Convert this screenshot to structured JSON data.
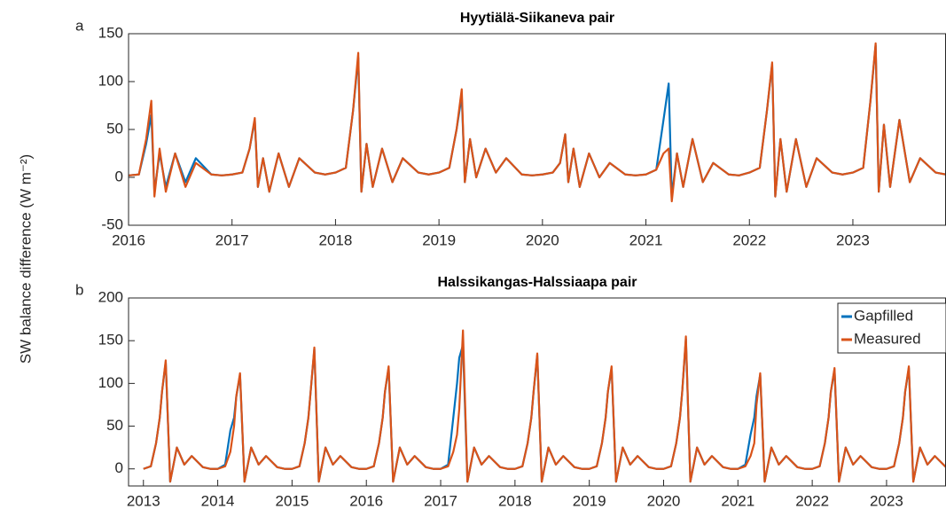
{
  "chart_data": [
    {
      "type": "line",
      "title": "Hyytiälä-Siikaneva pair",
      "panel_label": "a",
      "ylabel": "SW balance difference (W m⁻²)",
      "xlim": [
        2016,
        2023.9
      ],
      "xticks": [
        2016,
        2017,
        2018,
        2019,
        2020,
        2021,
        2022,
        2023
      ],
      "ylim": [
        -50,
        150
      ],
      "yticks": [
        -50,
        0,
        50,
        100,
        150
      ],
      "x": [
        2016.0,
        2016.1,
        2016.17,
        2016.22,
        2016.25,
        2016.3,
        2016.36,
        2016.45,
        2016.55,
        2016.65,
        2016.8,
        2016.9,
        2017.0,
        2017.1,
        2017.17,
        2017.22,
        2017.25,
        2017.3,
        2017.36,
        2017.45,
        2017.55,
        2017.65,
        2017.8,
        2017.9,
        2018.0,
        2018.1,
        2018.17,
        2018.22,
        2018.25,
        2018.3,
        2018.36,
        2018.45,
        2018.55,
        2018.65,
        2018.8,
        2018.9,
        2019.0,
        2019.1,
        2019.17,
        2019.22,
        2019.25,
        2019.3,
        2019.36,
        2019.45,
        2019.55,
        2019.65,
        2019.8,
        2019.9,
        2020.0,
        2020.1,
        2020.17,
        2020.22,
        2020.25,
        2020.3,
        2020.36,
        2020.45,
        2020.55,
        2020.65,
        2020.8,
        2020.9,
        2021.0,
        2021.1,
        2021.17,
        2021.22,
        2021.25,
        2021.3,
        2021.36,
        2021.45,
        2021.55,
        2021.65,
        2021.8,
        2021.9,
        2022.0,
        2022.1,
        2022.17,
        2022.22,
        2022.25,
        2022.3,
        2022.36,
        2022.45,
        2022.55,
        2022.65,
        2022.8,
        2022.9,
        2023.0,
        2023.1,
        2023.17,
        2023.22,
        2023.25,
        2023.3,
        2023.36,
        2023.45,
        2023.55,
        2023.65,
        2023.8,
        2023.9
      ],
      "series": [
        {
          "color": "#0072bd",
          "values": [
            2,
            3,
            35,
            65,
            -15,
            25,
            -10,
            25,
            -5,
            20,
            3,
            2,
            3,
            5,
            30,
            60,
            -10,
            20,
            -15,
            25,
            -10,
            20,
            5,
            3,
            5,
            10,
            70,
            125,
            -15,
            35,
            -10,
            30,
            -5,
            20,
            5,
            3,
            5,
            10,
            50,
            85,
            -5,
            40,
            0,
            30,
            5,
            20,
            3,
            2,
            3,
            5,
            15,
            45,
            -5,
            30,
            -10,
            25,
            0,
            15,
            3,
            2,
            3,
            8,
            60,
            98,
            -20,
            25,
            -10,
            40,
            -5,
            15,
            3,
            2,
            5,
            10,
            70,
            118,
            -20,
            40,
            -15,
            40,
            -10,
            20,
            5,
            3,
            5,
            10,
            80,
            138,
            -15,
            55,
            -10,
            60,
            -5,
            20,
            5,
            3
          ]
        },
        {
          "color": "#d95319",
          "values": [
            2,
            3,
            40,
            80,
            -20,
            30,
            -15,
            25,
            -10,
            15,
            3,
            2,
            3,
            5,
            30,
            62,
            -10,
            20,
            -15,
            25,
            -10,
            20,
            5,
            3,
            5,
            10,
            70,
            130,
            -15,
            35,
            -10,
            30,
            -5,
            20,
            5,
            3,
            5,
            10,
            50,
            92,
            -5,
            40,
            0,
            30,
            5,
            20,
            3,
            2,
            3,
            5,
            15,
            45,
            -5,
            30,
            -10,
            25,
            0,
            15,
            3,
            2,
            3,
            8,
            25,
            30,
            -25,
            25,
            -10,
            40,
            -5,
            15,
            3,
            2,
            5,
            10,
            70,
            120,
            -20,
            40,
            -15,
            40,
            -10,
            20,
            5,
            3,
            5,
            10,
            80,
            140,
            -15,
            55,
            -10,
            60,
            -5,
            20,
            5,
            3
          ]
        }
      ]
    },
    {
      "type": "line",
      "title": "Halssikangas-Halssiaapa pair",
      "panel_label": "b",
      "xlim": [
        2012.8,
        2023.8
      ],
      "xticks": [
        2013,
        2014,
        2015,
        2016,
        2017,
        2018,
        2019,
        2020,
        2021,
        2022,
        2023
      ],
      "ylim": [
        -20,
        200
      ],
      "yticks": [
        0,
        50,
        100,
        150,
        200
      ],
      "legend": "northeast",
      "x": [
        2013.0,
        2013.1,
        2013.17,
        2013.22,
        2013.25,
        2013.3,
        2013.36,
        2013.45,
        2013.55,
        2013.65,
        2013.8,
        2013.9,
        2014.0,
        2014.1,
        2014.17,
        2014.22,
        2014.25,
        2014.3,
        2014.36,
        2014.45,
        2014.55,
        2014.65,
        2014.8,
        2014.9,
        2015.0,
        2015.1,
        2015.17,
        2015.22,
        2015.25,
        2015.3,
        2015.36,
        2015.45,
        2015.55,
        2015.65,
        2015.8,
        2015.9,
        2016.0,
        2016.1,
        2016.17,
        2016.22,
        2016.25,
        2016.3,
        2016.36,
        2016.45,
        2016.55,
        2016.65,
        2016.8,
        2016.9,
        2017.0,
        2017.1,
        2017.17,
        2017.22,
        2017.25,
        2017.3,
        2017.36,
        2017.45,
        2017.55,
        2017.65,
        2017.8,
        2017.9,
        2018.0,
        2018.1,
        2018.17,
        2018.22,
        2018.25,
        2018.3,
        2018.36,
        2018.45,
        2018.55,
        2018.65,
        2018.8,
        2018.9,
        2019.0,
        2019.1,
        2019.17,
        2019.22,
        2019.25,
        2019.3,
        2019.36,
        2019.45,
        2019.55,
        2019.65,
        2019.8,
        2019.9,
        2020.0,
        2020.1,
        2020.17,
        2020.22,
        2020.25,
        2020.3,
        2020.36,
        2020.45,
        2020.55,
        2020.65,
        2020.8,
        2020.9,
        2021.0,
        2021.1,
        2021.17,
        2021.22,
        2021.25,
        2021.3,
        2021.36,
        2021.45,
        2021.55,
        2021.65,
        2021.8,
        2021.9,
        2022.0,
        2022.1,
        2022.17,
        2022.22,
        2022.25,
        2022.3,
        2022.36,
        2022.45,
        2022.55,
        2022.65,
        2022.8,
        2022.9,
        2023.0,
        2023.1,
        2023.17,
        2023.22,
        2023.25,
        2023.3,
        2023.36,
        2023.45,
        2023.55,
        2023.65,
        2023.8,
        2023.9
      ],
      "series": [
        {
          "name": "Gapfilled",
          "color": "#0072bd",
          "values": [
            0,
            3,
            30,
            60,
            90,
            125,
            -15,
            25,
            5,
            15,
            2,
            0,
            0,
            5,
            45,
            60,
            85,
            110,
            -15,
            25,
            5,
            15,
            2,
            0,
            0,
            3,
            30,
            60,
            90,
            140,
            -15,
            25,
            5,
            15,
            2,
            0,
            0,
            3,
            30,
            60,
            90,
            118,
            -15,
            25,
            5,
            15,
            2,
            0,
            0,
            5,
            60,
            100,
            130,
            145,
            -15,
            25,
            5,
            15,
            2,
            0,
            0,
            3,
            30,
            60,
            90,
            133,
            -15,
            25,
            5,
            15,
            2,
            0,
            0,
            3,
            30,
            60,
            90,
            118,
            -15,
            25,
            5,
            15,
            2,
            0,
            0,
            3,
            30,
            60,
            90,
            152,
            -15,
            25,
            5,
            15,
            2,
            0,
            0,
            5,
            40,
            60,
            85,
            110,
            -15,
            25,
            5,
            15,
            2,
            0,
            0,
            3,
            30,
            60,
            90,
            116,
            -15,
            25,
            5,
            15,
            2,
            0,
            0,
            3,
            30,
            60,
            90,
            118,
            -15,
            25,
            5,
            15,
            2,
            0
          ]
        },
        {
          "name": "Measured",
          "color": "#d95319",
          "values": [
            0,
            3,
            30,
            60,
            90,
            127,
            -15,
            25,
            5,
            15,
            2,
            0,
            0,
            3,
            20,
            50,
            85,
            112,
            -15,
            25,
            5,
            15,
            2,
            0,
            0,
            3,
            30,
            60,
            90,
            142,
            -15,
            25,
            5,
            15,
            2,
            0,
            0,
            3,
            30,
            60,
            90,
            120,
            -15,
            25,
            5,
            15,
            2,
            0,
            0,
            3,
            20,
            40,
            70,
            162,
            -15,
            25,
            5,
            15,
            2,
            0,
            0,
            3,
            30,
            60,
            90,
            135,
            -15,
            25,
            5,
            15,
            2,
            0,
            0,
            3,
            30,
            60,
            90,
            120,
            -15,
            25,
            5,
            15,
            2,
            0,
            0,
            3,
            30,
            60,
            90,
            155,
            -15,
            25,
            5,
            15,
            2,
            0,
            0,
            3,
            15,
            30,
            75,
            112,
            -15,
            25,
            5,
            15,
            2,
            0,
            0,
            3,
            30,
            60,
            90,
            118,
            -15,
            25,
            5,
            15,
            2,
            0,
            0,
            3,
            30,
            60,
            90,
            120,
            -15,
            25,
            5,
            15,
            2,
            0
          ]
        }
      ]
    }
  ]
}
